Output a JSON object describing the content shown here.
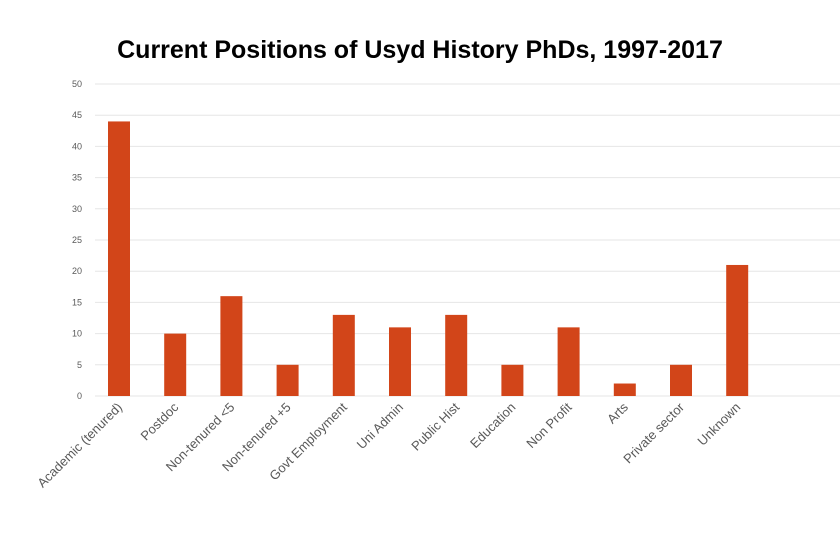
{
  "chart_data": {
    "type": "bar",
    "title": "Current Positions of Usyd History PhDs, 1997-2017",
    "xlabel": "",
    "ylabel": "",
    "categories": [
      "Academic (tenured)",
      "Postdoc",
      "Non-tenured <5",
      "Non-tenured +5",
      "Govt Employment",
      "Uni Admin",
      "Public Hist",
      "Education",
      "Non Profit",
      "Arts",
      "Private sector",
      "Unknown"
    ],
    "values": [
      44,
      10,
      16,
      5,
      13,
      11,
      13,
      5,
      11,
      2,
      5,
      21
    ],
    "ylim": [
      0,
      50
    ],
    "yticks": [
      0,
      5,
      10,
      15,
      20,
      25,
      30,
      35,
      40,
      45,
      50
    ],
    "grid": true,
    "legend": "none",
    "colors": {
      "bar": "#d24519",
      "grid": "#e6e6e6",
      "text": "#595959",
      "title": "#000000"
    }
  }
}
